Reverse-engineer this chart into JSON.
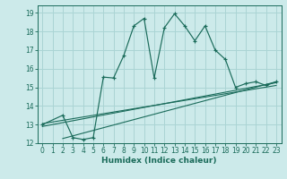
{
  "title": "",
  "xlabel": "Humidex (Indice chaleur)",
  "bg_color": "#cceaea",
  "grid_color": "#aad4d4",
  "line_color": "#1a6b5a",
  "xlim": [
    -0.5,
    23.5
  ],
  "ylim": [
    12,
    19.4
  ],
  "xticks": [
    0,
    1,
    2,
    3,
    4,
    5,
    6,
    7,
    8,
    9,
    10,
    11,
    12,
    13,
    14,
    15,
    16,
    17,
    18,
    19,
    20,
    21,
    22,
    23
  ],
  "yticks": [
    12,
    13,
    14,
    15,
    16,
    17,
    18,
    19
  ],
  "main_x": [
    0,
    2,
    3,
    4,
    5,
    6,
    7,
    8,
    9,
    10,
    11,
    12,
    13,
    14,
    15,
    16,
    17,
    18,
    19,
    20,
    21,
    22,
    23
  ],
  "main_y": [
    13.0,
    13.5,
    12.3,
    12.2,
    12.3,
    15.55,
    15.5,
    16.7,
    18.3,
    18.7,
    15.5,
    18.2,
    18.95,
    18.3,
    17.5,
    18.3,
    17.0,
    16.5,
    15.0,
    15.2,
    15.3,
    15.1,
    15.3
  ],
  "ref_lines": [
    {
      "x": [
        0,
        23
      ],
      "y": [
        12.9,
        15.25
      ]
    },
    {
      "x": [
        0,
        23
      ],
      "y": [
        13.05,
        15.1
      ]
    },
    {
      "x": [
        2,
        23
      ],
      "y": [
        12.25,
        15.3
      ]
    }
  ]
}
